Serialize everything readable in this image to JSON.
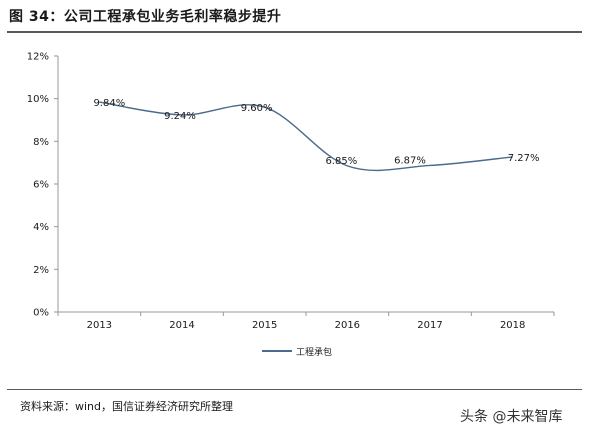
{
  "header": {
    "title": "图 34：公司工程承包业务毛利率稳步提升"
  },
  "chart_data": {
    "type": "line",
    "categories": [
      "2013",
      "2014",
      "2015",
      "2016",
      "2017",
      "2018"
    ],
    "series": [
      {
        "name": "工程承包",
        "values": [
          9.84,
          9.24,
          9.6,
          6.85,
          6.87,
          7.27
        ],
        "labels": [
          "9.84%",
          "9.24%",
          "9.60%",
          "6.85%",
          "6.87%",
          "7.27%"
        ],
        "color": "#4a6a8e"
      }
    ],
    "ylim": [
      0,
      12
    ],
    "yticks": [
      0,
      2,
      4,
      6,
      8,
      10,
      12
    ],
    "ytick_labels": [
      "0%",
      "2%",
      "4%",
      "6%",
      "8%",
      "10%",
      "12%"
    ],
    "xlabel": "",
    "ylabel": "",
    "grid": false,
    "smooth": true,
    "legend_position": "bottom-center"
  },
  "footer": {
    "source": "资料来源：wind，国信证券经济研究所整理",
    "watermark": "头条 @未来智库"
  }
}
